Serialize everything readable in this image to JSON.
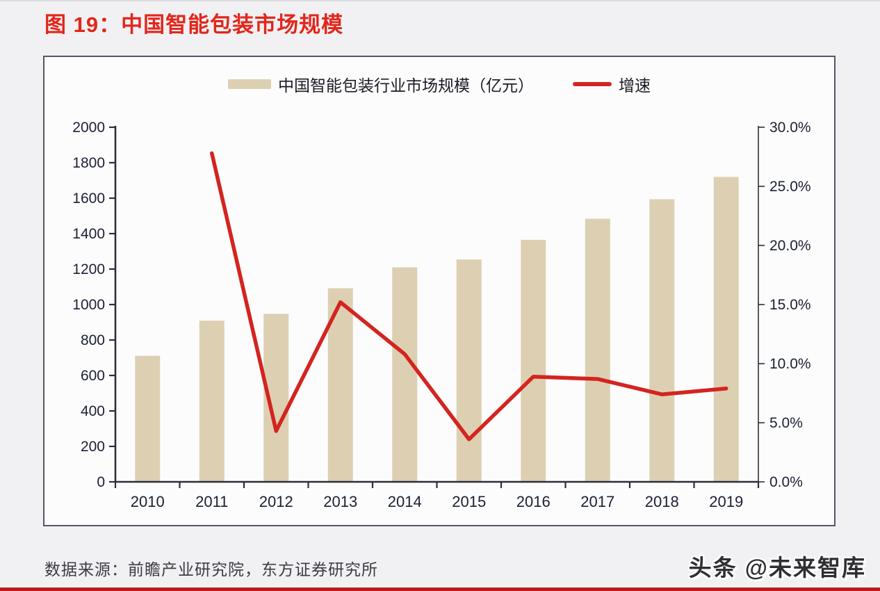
{
  "page": {
    "figure_title": "图 19：中国智能包装市场规模",
    "source_text": "数据来源：前瞻产业研究院，东方证券研究所",
    "watermark": "头条 @未来智库"
  },
  "chart_data": {
    "type": "bar",
    "subtype": "bar-line-combo",
    "title": "中国智能包装市场规模",
    "categories": [
      "2010",
      "2011",
      "2012",
      "2013",
      "2014",
      "2015",
      "2016",
      "2017",
      "2018",
      "2019"
    ],
    "series": [
      {
        "name": "中国智能包装行业市场规模（亿元）",
        "type": "bar",
        "axis": "left",
        "color": "#ddd0b2",
        "values": [
          711,
          909,
          948,
          1092,
          1210,
          1254,
          1365,
          1484,
          1594,
          1720
        ]
      },
      {
        "name": "增速",
        "type": "line",
        "axis": "right",
        "color": "#d42420",
        "values": [
          null,
          27.8,
          4.3,
          15.2,
          10.8,
          3.6,
          8.9,
          8.7,
          7.4,
          7.9
        ]
      }
    ],
    "left_axis": {
      "min": 0,
      "max": 2000,
      "step": 200,
      "tick_labels": [
        "0",
        "200",
        "400",
        "600",
        "800",
        "1000",
        "1200",
        "1400",
        "1600",
        "1800",
        "2000"
      ]
    },
    "right_axis": {
      "min": 0,
      "max": 30,
      "step": 5,
      "tick_labels": [
        "0.0%",
        "5.0%",
        "10.0%",
        "15.0%",
        "20.0%",
        "25.0%",
        "30.0%"
      ]
    },
    "legend_position": "top-center",
    "grid": false
  },
  "colors": {
    "title_red": "#e2261b",
    "bar_fill": "#ddd0b2",
    "line_red": "#d42420",
    "axis": "#2e2e3a",
    "tick_text": "#1b1f33",
    "frame_border": "#55556a",
    "chart_bg": "#fcfcfd",
    "page_bg": "#f1f1f3",
    "source_text": "#3c3c46",
    "bottom_rule": "#bc1b17"
  }
}
